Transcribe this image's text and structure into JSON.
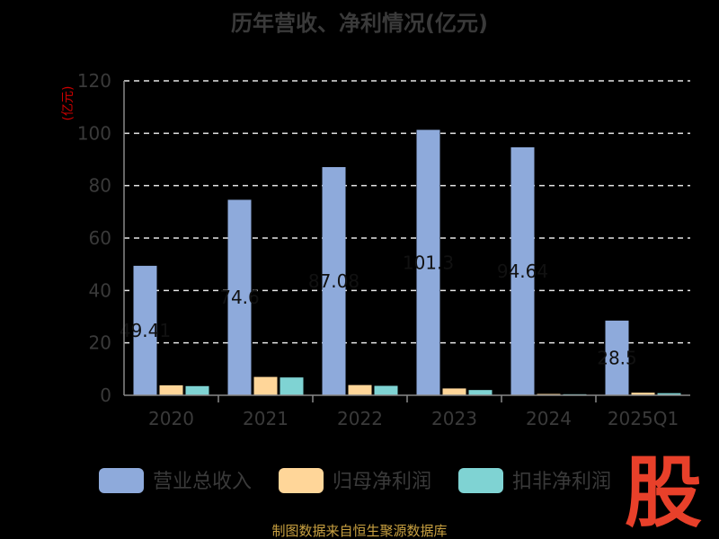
{
  "chart_data": {
    "type": "bar",
    "title": "历年营收、净利情况(亿元)",
    "ylabel": "(亿元)",
    "xlabel": "",
    "categories": [
      "2020",
      "2021",
      "2022",
      "2023",
      "2024",
      "2025Q1"
    ],
    "ylim": [
      0,
      120
    ],
    "yticks": [
      0,
      20,
      40,
      60,
      80,
      100,
      120
    ],
    "grid": true,
    "legend_position": "bottom",
    "series": [
      {
        "name": "营业总收入",
        "color": "#8eaadb",
        "values": [
          49.41,
          74.6,
          87.08,
          101.3,
          94.64,
          28.5
        ],
        "data_labels": [
          "49.41",
          "74.6",
          "87.08",
          "101.3",
          "94.64",
          "28.5"
        ]
      },
      {
        "name": "归母净利润",
        "color": "#ffd699",
        "values": [
          3.8,
          7.0,
          3.9,
          2.6,
          0.5,
          1.0
        ]
      },
      {
        "name": "扣非净利润",
        "color": "#7fd3d3",
        "values": [
          3.5,
          6.8,
          3.6,
          2.0,
          0.4,
          0.8
        ]
      }
    ]
  },
  "footer": {
    "source": "制图数据来自恒生聚源数据库"
  },
  "watermark": {
    "text": "股"
  }
}
